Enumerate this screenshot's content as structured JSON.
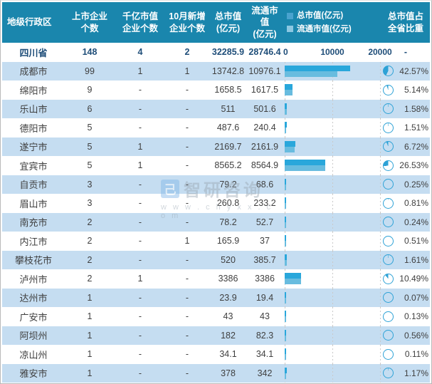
{
  "colors": {
    "header_bg": "#1a86ad",
    "alt_row_bg": "#c5ddf1",
    "total_bar": "#29a7db",
    "circ_bar": "#68bcdf",
    "legend_total_swatch": "#4aa3cf",
    "legend_circ_swatch": "#8cc8e2",
    "pie_color": "#2ea2d6",
    "total_row_text": "#1f4e79",
    "body_text": "#3f3f3f"
  },
  "header": {
    "region": "地级行政区",
    "listed": [
      "上市企业",
      "个数"
    ],
    "billion": [
      "千亿市值",
      "企业个数"
    ],
    "new_oct": [
      "10月新增",
      "企业个数"
    ],
    "total_cap": [
      "总市值",
      "(亿元)"
    ],
    "circ_cap": [
      "流通市值",
      "(亿元)"
    ],
    "share": [
      "总市值占",
      "全省比重"
    ],
    "legend": [
      {
        "label": "总市值(亿元)"
      },
      {
        "label": "流通市值(亿元)"
      }
    ]
  },
  "watermark": {
    "logo_glyph": "己",
    "name": "智研咨询",
    "url": "w w w . c h y x x . c o m"
  },
  "chart_data": {
    "type": "table",
    "title": "",
    "columns": [
      "地级行政区",
      "上市企业个数",
      "千亿市值企业个数",
      "10月新增企业个数",
      "总市值(亿元)",
      "流通市值(亿元)",
      "市值条形图",
      "总市值占全省比重"
    ],
    "embedded_bar_chart": {
      "type": "bar",
      "orientation": "horizontal",
      "series": [
        "总市值(亿元)",
        "流通市值(亿元)"
      ],
      "axis_ticks": [
        0,
        10000,
        20000
      ],
      "xlim": [
        0,
        20000
      ],
      "grid": true,
      "legend_position": "header"
    },
    "embedded_pie": {
      "type": "pie",
      "represents": "总市值占全省比重",
      "direction": "counterclockwise-from-top"
    },
    "rows": [
      {
        "region": "四川省",
        "listed": "148",
        "billion": "4",
        "new_oct": "2",
        "total": "32285.9",
        "circ": "28746.4",
        "share": "-",
        "is_total": true
      },
      {
        "region": "成都市",
        "listed": "99",
        "billion": "1",
        "new_oct": "1",
        "total": "13742.8",
        "circ": "10976.1",
        "share": "42.57%"
      },
      {
        "region": "绵阳市",
        "listed": "9",
        "billion": "-",
        "new_oct": "-",
        "total": "1658.5",
        "circ": "1617.5",
        "share": "5.14%"
      },
      {
        "region": "乐山市",
        "listed": "6",
        "billion": "-",
        "new_oct": "-",
        "total": "511",
        "circ": "501.6",
        "share": "1.58%"
      },
      {
        "region": "德阳市",
        "listed": "5",
        "billion": "-",
        "new_oct": "-",
        "total": "487.6",
        "circ": "240.4",
        "share": "1.51%"
      },
      {
        "region": "遂宁市",
        "listed": "5",
        "billion": "1",
        "new_oct": "-",
        "total": "2169.7",
        "circ": "2161.9",
        "share": "6.72%"
      },
      {
        "region": "宜宾市",
        "listed": "5",
        "billion": "1",
        "new_oct": "-",
        "total": "8565.2",
        "circ": "8564.9",
        "share": "26.53%"
      },
      {
        "region": "自贡市",
        "listed": "3",
        "billion": "-",
        "new_oct": "-",
        "total": "79.2",
        "circ": "68.6",
        "share": "0.25%"
      },
      {
        "region": "眉山市",
        "listed": "3",
        "billion": "-",
        "new_oct": "-",
        "total": "260.8",
        "circ": "233.2",
        "share": "0.81%"
      },
      {
        "region": "南充市",
        "listed": "2",
        "billion": "-",
        "new_oct": "-",
        "total": "78.2",
        "circ": "52.7",
        "share": "0.24%"
      },
      {
        "region": "内江市",
        "listed": "2",
        "billion": "-",
        "new_oct": "1",
        "total": "165.9",
        "circ": "37",
        "share": "0.51%"
      },
      {
        "region": "攀枝花市",
        "listed": "2",
        "billion": "-",
        "new_oct": "-",
        "total": "520",
        "circ": "385.7",
        "share": "1.61%"
      },
      {
        "region": "泸州市",
        "listed": "2",
        "billion": "1",
        "new_oct": "-",
        "total": "3386",
        "circ": "3386",
        "share": "10.49%"
      },
      {
        "region": "达州市",
        "listed": "1",
        "billion": "-",
        "new_oct": "-",
        "total": "23.9",
        "circ": "19.4",
        "share": "0.07%"
      },
      {
        "region": "广安市",
        "listed": "1",
        "billion": "-",
        "new_oct": "-",
        "total": "43",
        "circ": "43",
        "share": "0.13%"
      },
      {
        "region": "阿坝州",
        "listed": "1",
        "billion": "-",
        "new_oct": "-",
        "total": "182",
        "circ": "82.3",
        "share": "0.56%"
      },
      {
        "region": "凉山州",
        "listed": "1",
        "billion": "-",
        "new_oct": "-",
        "total": "34.1",
        "circ": "34.1",
        "share": "0.11%"
      },
      {
        "region": "雅安市",
        "listed": "1",
        "billion": "-",
        "new_oct": "-",
        "total": "378",
        "circ": "342",
        "share": "1.17%"
      }
    ]
  }
}
